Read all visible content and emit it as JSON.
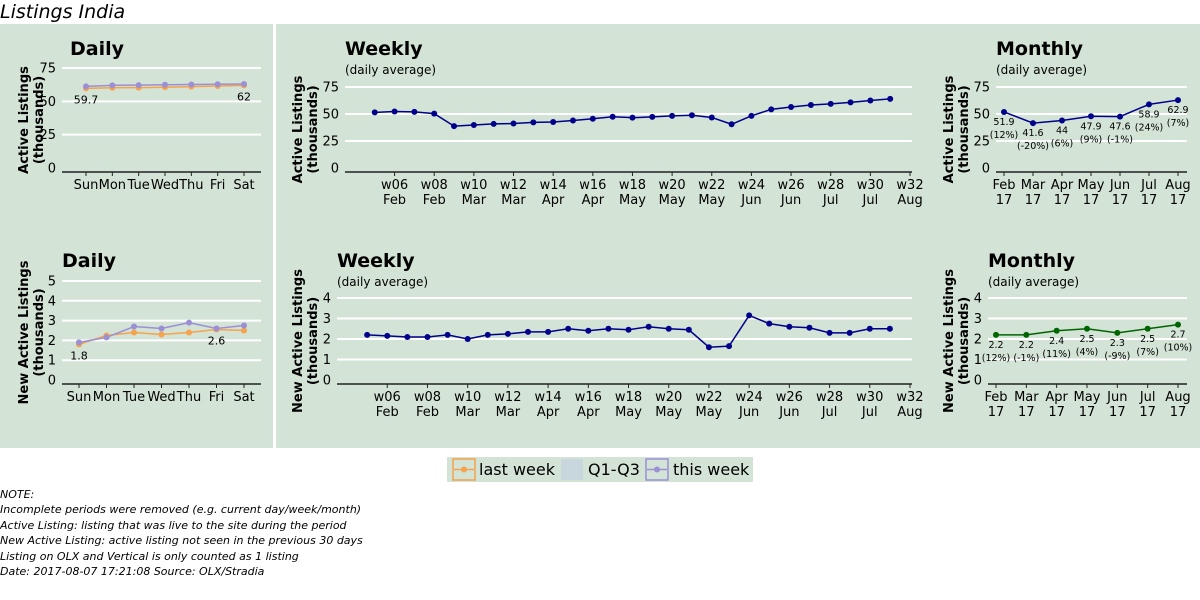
{
  "page_title": "Listings India",
  "colors": {
    "panel_bg": "#d3e3d5",
    "last_week": "#f5a34c",
    "this_week": "#9b8fd6",
    "q1_q3": "#c8d7de",
    "weekly_line": "#00008b",
    "monthly_new_line": "#006400"
  },
  "legend": {
    "items": [
      {
        "label": "last week",
        "color": "#f5a34c",
        "marker": "line-dot"
      },
      {
        "label": "Q1-Q3",
        "color": "#c8d7de",
        "marker": "patch"
      },
      {
        "label": "this week",
        "color": "#9b8fd6",
        "marker": "line-dot"
      }
    ]
  },
  "notes": {
    "title": "NOTE:",
    "lines": [
      "Incomplete periods were removed (e.g. current day/week/month)",
      "Active Listing: listing that was live to the site during the period",
      "New Active Listing: active listing not seen in the previous 30 days",
      "Listing on OLX and Vertical is only counted as 1 listing",
      "Date: 2017-08-07 17:21:08 Source: OLX/Stradia"
    ]
  },
  "chart_data": [
    {
      "id": "daily_active",
      "type": "line",
      "title": "Daily",
      "ylabel": [
        "Active Listings",
        "(thousands)"
      ],
      "ylim": [
        0,
        78
      ],
      "yticks": [
        0,
        25,
        50,
        75
      ],
      "grid": true,
      "categories": [
        "Sun",
        "Mon",
        "Tue",
        "Wed",
        "Thu",
        "Fri",
        "Sat"
      ],
      "series": [
        {
          "name": "last week",
          "color": "#f5a34c",
          "values": [
            59.7,
            60.2,
            60.3,
            60.6,
            61.0,
            61.5,
            62.0
          ]
        },
        {
          "name": "this week",
          "color": "#9b8fd6",
          "values": [
            61.2,
            62.0,
            62.2,
            62.4,
            62.6,
            62.8,
            63.0
          ]
        }
      ],
      "annotations": [
        {
          "category_index": 0,
          "text": "59.7"
        },
        {
          "category_index": 6,
          "text": "62"
        }
      ]
    },
    {
      "id": "weekly_active",
      "type": "line",
      "title": "Weekly",
      "subtitle": "(daily average)",
      "ylabel": [
        "Active Listings",
        "(thousands)"
      ],
      "ylim": [
        0,
        78
      ],
      "yticks": [
        0,
        25,
        50,
        75
      ],
      "grid": true,
      "xticks": [
        {
          "week": 6,
          "label": [
            "w06",
            "Feb"
          ]
        },
        {
          "week": 8,
          "label": [
            "w08",
            "Feb"
          ]
        },
        {
          "week": 10,
          "label": [
            "w10",
            "Mar"
          ]
        },
        {
          "week": 12,
          "label": [
            "w12",
            "Mar"
          ]
        },
        {
          "week": 14,
          "label": [
            "w14",
            "Apr"
          ]
        },
        {
          "week": 16,
          "label": [
            "w16",
            "Apr"
          ]
        },
        {
          "week": 18,
          "label": [
            "w18",
            "May"
          ]
        },
        {
          "week": 20,
          "label": [
            "w20",
            "May"
          ]
        },
        {
          "week": 22,
          "label": [
            "w22",
            "May"
          ]
        },
        {
          "week": 24,
          "label": [
            "w24",
            "Jun"
          ]
        },
        {
          "week": 26,
          "label": [
            "w26",
            "Jun"
          ]
        },
        {
          "week": 28,
          "label": [
            "w28",
            "Jul"
          ]
        },
        {
          "week": 30,
          "label": [
            "w30",
            "Jul"
          ]
        },
        {
          "week": 32,
          "label": [
            "w32",
            "Aug"
          ]
        }
      ],
      "series": [
        {
          "color": "#00008b",
          "x": [
            5,
            6,
            7,
            8,
            9,
            10,
            11,
            12,
            13,
            14,
            15,
            16,
            17,
            18,
            19,
            20,
            21,
            22,
            23,
            24,
            25,
            26,
            27,
            28,
            29,
            30,
            31
          ],
          "values": [
            51.5,
            52.3,
            52.0,
            50.4,
            38.8,
            39.8,
            40.8,
            41.2,
            42.2,
            42.6,
            44.0,
            45.6,
            47.4,
            46.6,
            47.3,
            48.3,
            48.8,
            46.8,
            40.5,
            48.3,
            54.3,
            56.5,
            58.3,
            59.4,
            60.8,
            62.5,
            64.0
          ]
        }
      ]
    },
    {
      "id": "monthly_active",
      "type": "line",
      "title": "Monthly",
      "subtitle": "(daily average)",
      "ylabel": [
        "Active Listings",
        "(thousands)"
      ],
      "ylim": [
        0,
        78
      ],
      "yticks": [
        0,
        25,
        50,
        75
      ],
      "grid": true,
      "categories": [
        [
          "Feb",
          "17"
        ],
        [
          "Mar",
          "17"
        ],
        [
          "Apr",
          "17"
        ],
        [
          "May",
          "17"
        ],
        [
          "Jun",
          "17"
        ],
        [
          "Jul",
          "17"
        ],
        [
          "Aug",
          "17"
        ]
      ],
      "series": [
        {
          "color": "#00008b",
          "values": [
            51.9,
            41.6,
            44.0,
            47.9,
            47.6,
            58.9,
            62.9
          ]
        }
      ],
      "point_labels": [
        [
          "51.9",
          "(12%)"
        ],
        [
          "41.6",
          "(-20%)"
        ],
        [
          "44",
          "(6%)"
        ],
        [
          "47.9",
          "(9%)"
        ],
        [
          "47.6",
          "(-1%)"
        ],
        [
          "58.9",
          "(24%)"
        ],
        [
          "62.9",
          "(7%)"
        ]
      ]
    },
    {
      "id": "daily_new",
      "type": "line",
      "title": "Daily",
      "ylabel": [
        "New Active Listings",
        "(thousands)"
      ],
      "ylim": [
        0,
        5
      ],
      "yticks": [
        0,
        1,
        2,
        3,
        4,
        5
      ],
      "grid": true,
      "categories": [
        "Sun",
        "Mon",
        "Tue",
        "Wed",
        "Thu",
        "Fri",
        "Sat"
      ],
      "series": [
        {
          "name": "last week",
          "color": "#f5a34c",
          "values": [
            1.8,
            2.25,
            2.4,
            2.3,
            2.4,
            2.55,
            2.5
          ]
        },
        {
          "name": "this week",
          "color": "#9b8fd6",
          "values": [
            1.9,
            2.15,
            2.7,
            2.6,
            2.9,
            2.6,
            2.75
          ]
        }
      ],
      "annotations": [
        {
          "category_index": 0,
          "text": "1.8"
        },
        {
          "category_index": 5,
          "text": "2.6"
        }
      ]
    },
    {
      "id": "weekly_new",
      "type": "line",
      "title": "Weekly",
      "subtitle": "(daily average)",
      "ylabel": [
        "New Active Listings",
        "(thousands)"
      ],
      "ylim": [
        0,
        4.2
      ],
      "yticks": [
        0,
        1,
        2,
        3,
        4
      ],
      "grid": true,
      "xticks": [
        {
          "week": 6,
          "label": [
            "w06",
            "Feb"
          ]
        },
        {
          "week": 8,
          "label": [
            "w08",
            "Feb"
          ]
        },
        {
          "week": 10,
          "label": [
            "w10",
            "Mar"
          ]
        },
        {
          "week": 12,
          "label": [
            "w12",
            "Mar"
          ]
        },
        {
          "week": 14,
          "label": [
            "w14",
            "Apr"
          ]
        },
        {
          "week": 16,
          "label": [
            "w16",
            "Apr"
          ]
        },
        {
          "week": 18,
          "label": [
            "w18",
            "May"
          ]
        },
        {
          "week": 20,
          "label": [
            "w20",
            "May"
          ]
        },
        {
          "week": 22,
          "label": [
            "w22",
            "May"
          ]
        },
        {
          "week": 24,
          "label": [
            "w24",
            "Jun"
          ]
        },
        {
          "week": 26,
          "label": [
            "w26",
            "Jun"
          ]
        },
        {
          "week": 28,
          "label": [
            "w28",
            "Jul"
          ]
        },
        {
          "week": 30,
          "label": [
            "w30",
            "Jul"
          ]
        },
        {
          "week": 32,
          "label": [
            "w32",
            "Aug"
          ]
        }
      ],
      "series": [
        {
          "color": "#00008b",
          "x": [
            5,
            6,
            7,
            8,
            9,
            10,
            11,
            12,
            13,
            14,
            15,
            16,
            17,
            18,
            19,
            20,
            21,
            22,
            23,
            24,
            25,
            26,
            27,
            28,
            29,
            30,
            31
          ],
          "values": [
            2.2,
            2.15,
            2.1,
            2.1,
            2.2,
            2.0,
            2.2,
            2.25,
            2.35,
            2.35,
            2.5,
            2.4,
            2.5,
            2.45,
            2.6,
            2.5,
            2.45,
            1.6,
            1.65,
            3.15,
            2.75,
            2.6,
            2.55,
            2.3,
            2.3,
            2.5,
            2.5
          ]
        }
      ]
    },
    {
      "id": "monthly_new",
      "type": "line",
      "title": "Monthly",
      "subtitle": "(daily average)",
      "ylabel": [
        "New Active Listings",
        "(thousands)"
      ],
      "ylim": [
        0,
        4.2
      ],
      "yticks": [
        0,
        1,
        2,
        3,
        4
      ],
      "grid": true,
      "categories": [
        [
          "Feb",
          "17"
        ],
        [
          "Mar",
          "17"
        ],
        [
          "Apr",
          "17"
        ],
        [
          "May",
          "17"
        ],
        [
          "Jun",
          "17"
        ],
        [
          "Jul",
          "17"
        ],
        [
          "Aug",
          "17"
        ]
      ],
      "series": [
        {
          "color": "#006400",
          "values": [
            2.2,
            2.2,
            2.4,
            2.5,
            2.3,
            2.5,
            2.7
          ]
        }
      ],
      "point_labels": [
        [
          "2.2",
          "(12%)"
        ],
        [
          "2.2",
          "(-1%)"
        ],
        [
          "2.4",
          "(11%)"
        ],
        [
          "2.5",
          "(4%)"
        ],
        [
          "2.3",
          "(-9%)"
        ],
        [
          "2.5",
          "(7%)"
        ],
        [
          "2.7",
          "(10%)"
        ]
      ]
    }
  ]
}
